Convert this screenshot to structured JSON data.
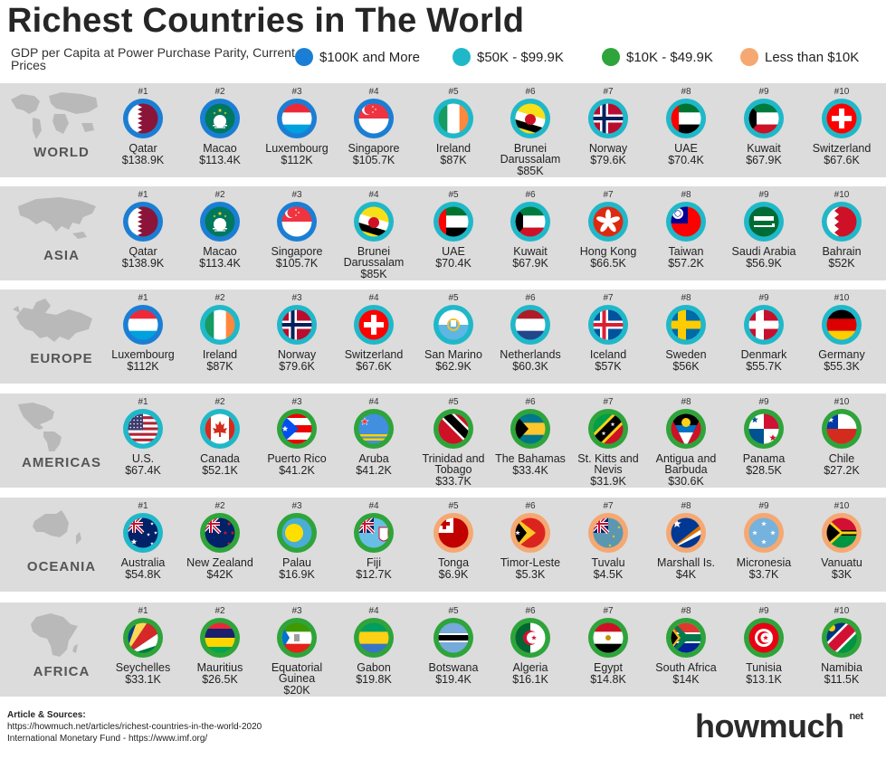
{
  "title": "Richest Countries in The World",
  "subtitle": "GDP per Capita at Power Purchase Parity, Current Prices",
  "legend": [
    {
      "label": "$100K and More",
      "color": "#1a7fd4"
    },
    {
      "label": "$50K - $99.9K",
      "color": "#1fb8c9"
    },
    {
      "label": "$10K - $49.9K",
      "color": "#2ea43a"
    },
    {
      "label": "Less than $10K",
      "color": "#f5a872"
    }
  ],
  "sources": {
    "heading": "Article & Sources:",
    "line1": "https://howmuch.net/articles/richest-countries-in-the-world-2020",
    "line2": "International Monetary Fund - https://www.imf.org/"
  },
  "logo": {
    "text": "howmuch",
    "suffix": "net"
  },
  "chart_data": {
    "type": "table",
    "title": "Richest Countries in The World",
    "unit": "GDP per Capita at Power Purchase Parity, Current Prices",
    "regions": [
      {
        "name": "WORLD",
        "countries": [
          {
            "rank": "#1",
            "name": "Qatar",
            "value": "$138.9K",
            "flag": "qatar"
          },
          {
            "rank": "#2",
            "name": "Macao",
            "value": "$113.4K",
            "flag": "macao"
          },
          {
            "rank": "#3",
            "name": "Luxembourg",
            "value": "$112K",
            "flag": "luxembourg"
          },
          {
            "rank": "#4",
            "name": "Singapore",
            "value": "$105.7K",
            "flag": "singapore"
          },
          {
            "rank": "#5",
            "name": "Ireland",
            "value": "$87K",
            "flag": "ireland"
          },
          {
            "rank": "#6",
            "name": "Brunei Darussalam",
            "value": "$85K",
            "flag": "brunei"
          },
          {
            "rank": "#7",
            "name": "Norway",
            "value": "$79.6K",
            "flag": "norway"
          },
          {
            "rank": "#8",
            "name": "UAE",
            "value": "$70.4K",
            "flag": "uae"
          },
          {
            "rank": "#9",
            "name": "Kuwait",
            "value": "$67.9K",
            "flag": "kuwait"
          },
          {
            "rank": "#10",
            "name": "Switzerland",
            "value": "$67.6K",
            "flag": "switzerland"
          }
        ]
      },
      {
        "name": "ASIA",
        "countries": [
          {
            "rank": "#1",
            "name": "Qatar",
            "value": "$138.9K",
            "flag": "qatar"
          },
          {
            "rank": "#2",
            "name": "Macao",
            "value": "$113.4K",
            "flag": "macao"
          },
          {
            "rank": "#3",
            "name": "Singapore",
            "value": "$105.7K",
            "flag": "singapore"
          },
          {
            "rank": "#4",
            "name": "Brunei Darussalam",
            "value": "$85K",
            "flag": "brunei"
          },
          {
            "rank": "#5",
            "name": "UAE",
            "value": "$70.4K",
            "flag": "uae"
          },
          {
            "rank": "#6",
            "name": "Kuwait",
            "value": "$67.9K",
            "flag": "kuwait"
          },
          {
            "rank": "#7",
            "name": "Hong Kong",
            "value": "$66.5K",
            "flag": "hongkong"
          },
          {
            "rank": "#8",
            "name": "Taiwan",
            "value": "$57.2K",
            "flag": "taiwan"
          },
          {
            "rank": "#9",
            "name": "Saudi Arabia",
            "value": "$56.9K",
            "flag": "saudi"
          },
          {
            "rank": "#10",
            "name": "Bahrain",
            "value": "$52K",
            "flag": "bahrain"
          }
        ]
      },
      {
        "name": "EUROPE",
        "countries": [
          {
            "rank": "#1",
            "name": "Luxembourg",
            "value": "$112K",
            "flag": "luxembourg"
          },
          {
            "rank": "#2",
            "name": "Ireland",
            "value": "$87K",
            "flag": "ireland"
          },
          {
            "rank": "#3",
            "name": "Norway",
            "value": "$79.6K",
            "flag": "norway"
          },
          {
            "rank": "#4",
            "name": "Switzerland",
            "value": "$67.6K",
            "flag": "switzerland"
          },
          {
            "rank": "#5",
            "name": "San Marino",
            "value": "$62.9K",
            "flag": "sanmarino"
          },
          {
            "rank": "#6",
            "name": "Netherlands",
            "value": "$60.3K",
            "flag": "netherlands"
          },
          {
            "rank": "#7",
            "name": "Iceland",
            "value": "$57K",
            "flag": "iceland"
          },
          {
            "rank": "#8",
            "name": "Sweden",
            "value": "$56K",
            "flag": "sweden"
          },
          {
            "rank": "#9",
            "name": "Denmark",
            "value": "$55.7K",
            "flag": "denmark"
          },
          {
            "rank": "#10",
            "name": "Germany",
            "value": "$55.3K",
            "flag": "germany"
          }
        ]
      },
      {
        "name": "AMERICAS",
        "countries": [
          {
            "rank": "#1",
            "name": "U.S.",
            "value": "$67.4K",
            "flag": "us"
          },
          {
            "rank": "#2",
            "name": "Canada",
            "value": "$52.1K",
            "flag": "canada"
          },
          {
            "rank": "#3",
            "name": "Puerto Rico",
            "value": "$41.2K",
            "flag": "puertorico"
          },
          {
            "rank": "#4",
            "name": "Aruba",
            "value": "$41.2K",
            "flag": "aruba"
          },
          {
            "rank": "#5",
            "name": "Trinidad and Tobago",
            "value": "$33.7K",
            "flag": "trinidad"
          },
          {
            "rank": "#6",
            "name": "The Bahamas",
            "value": "$33.4K",
            "flag": "bahamas"
          },
          {
            "rank": "#7",
            "name": "St. Kitts and Nevis",
            "value": "$31.9K",
            "flag": "stkitts"
          },
          {
            "rank": "#8",
            "name": "Antigua and Barbuda",
            "value": "$30.6K",
            "flag": "antigua"
          },
          {
            "rank": "#9",
            "name": "Panama",
            "value": "$28.5K",
            "flag": "panama"
          },
          {
            "rank": "#10",
            "name": "Chile",
            "value": "$27.2K",
            "flag": "chile"
          }
        ]
      },
      {
        "name": "OCEANIA",
        "countries": [
          {
            "rank": "#1",
            "name": "Australia",
            "value": "$54.8K",
            "flag": "australia"
          },
          {
            "rank": "#2",
            "name": "New Zealand",
            "value": "$42K",
            "flag": "newzealand"
          },
          {
            "rank": "#3",
            "name": "Palau",
            "value": "$16.9K",
            "flag": "palau"
          },
          {
            "rank": "#4",
            "name": "Fiji",
            "value": "$12.7K",
            "flag": "fiji"
          },
          {
            "rank": "#5",
            "name": "Tonga",
            "value": "$6.9K",
            "flag": "tonga"
          },
          {
            "rank": "#6",
            "name": "Timor-Leste",
            "value": "$5.3K",
            "flag": "timor"
          },
          {
            "rank": "#7",
            "name": "Tuvalu",
            "value": "$4.5K",
            "flag": "tuvalu"
          },
          {
            "rank": "#8",
            "name": "Marshall Is.",
            "value": "$4K",
            "flag": "marshall"
          },
          {
            "rank": "#9",
            "name": "Micronesia",
            "value": "$3.7K",
            "flag": "micronesia"
          },
          {
            "rank": "#10",
            "name": "Vanuatu",
            "value": "$3K",
            "flag": "vanuatu"
          }
        ]
      },
      {
        "name": "AFRICA",
        "countries": [
          {
            "rank": "#1",
            "name": "Seychelles",
            "value": "$33.1K",
            "flag": "seychelles"
          },
          {
            "rank": "#2",
            "name": "Mauritius",
            "value": "$26.5K",
            "flag": "mauritius"
          },
          {
            "rank": "#3",
            "name": "Equatorial Guinea",
            "value": "$20K",
            "flag": "eqguinea"
          },
          {
            "rank": "#4",
            "name": "Gabon",
            "value": "$19.8K",
            "flag": "gabon"
          },
          {
            "rank": "#5",
            "name": "Botswana",
            "value": "$19.4K",
            "flag": "botswana"
          },
          {
            "rank": "#6",
            "name": "Algeria",
            "value": "$16.1K",
            "flag": "algeria"
          },
          {
            "rank": "#7",
            "name": "Egypt",
            "value": "$14.8K",
            "flag": "egypt"
          },
          {
            "rank": "#8",
            "name": "South Africa",
            "value": "$14K",
            "flag": "southafrica"
          },
          {
            "rank": "#9",
            "name": "Tunisia",
            "value": "$13.1K",
            "flag": "tunisia"
          },
          {
            "rank": "#10",
            "name": "Namibia",
            "value": "$11.5K",
            "flag": "namibia"
          }
        ]
      }
    ]
  }
}
